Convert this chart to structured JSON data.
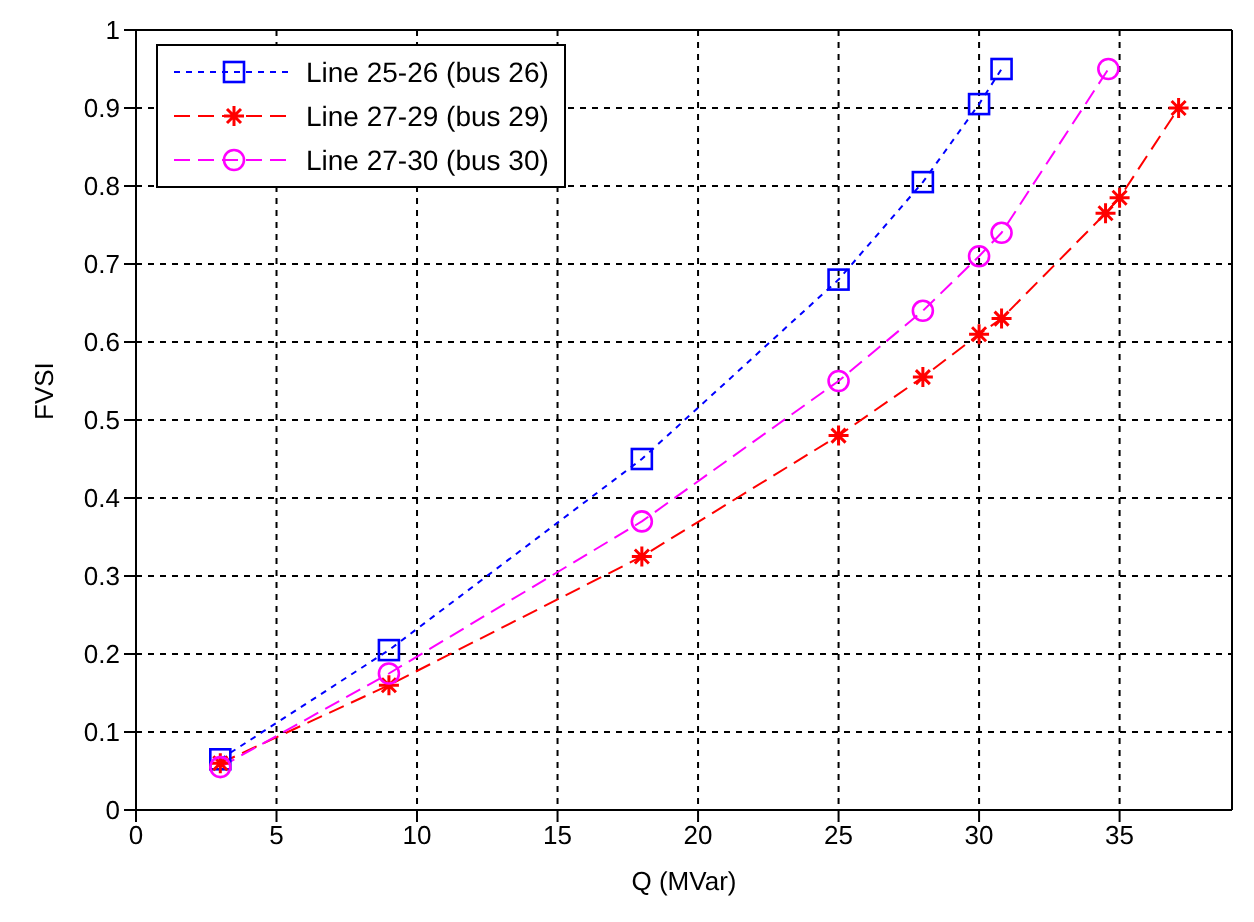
{
  "chart_data": {
    "type": "line",
    "xlabel": "Q (MVar)",
    "ylabel": "FVSI",
    "xlim": [
      0,
      39
    ],
    "xticks": [
      0,
      5,
      10,
      15,
      20,
      25,
      30,
      35
    ],
    "ylim": [
      0,
      1
    ],
    "yticks": [
      0,
      0.1,
      0.2,
      0.3,
      0.4,
      0.5,
      0.6,
      0.7,
      0.8,
      0.9,
      1
    ],
    "grid": true,
    "legend": "top left",
    "series": [
      {
        "name": "Line 25-26 (bus 26)",
        "color": "#0000ff",
        "marker": "square",
        "line_style": "dotted",
        "x": [
          3,
          9,
          18,
          25,
          28,
          30,
          30.8
        ],
        "values": [
          0.065,
          0.205,
          0.45,
          0.68,
          0.805,
          0.905,
          0.95
        ]
      },
      {
        "name": "Line 27-29 (bus 29)",
        "color": "#ff0000",
        "marker": "cross",
        "line_style": "dashed",
        "x": [
          3,
          9,
          18,
          25,
          28,
          30,
          30.8,
          34.5,
          35,
          37.1
        ],
        "values": [
          0.06,
          0.16,
          0.325,
          0.48,
          0.555,
          0.61,
          0.63,
          0.765,
          0.785,
          0.9
        ]
      },
      {
        "name": "Line 27-30 (bus 30)",
        "color": "#ff00ff",
        "marker": "circle",
        "line_style": "dashed",
        "x": [
          3,
          9,
          18,
          25,
          28,
          30,
          30.8,
          34.6
        ],
        "values": [
          0.055,
          0.175,
          0.37,
          0.55,
          0.64,
          0.71,
          0.74,
          0.95
        ]
      }
    ]
  }
}
